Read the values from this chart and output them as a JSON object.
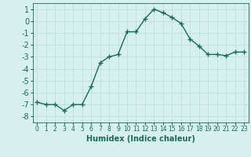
{
  "x": [
    0,
    1,
    2,
    3,
    4,
    5,
    6,
    7,
    8,
    9,
    10,
    11,
    12,
    13,
    14,
    15,
    16,
    17,
    18,
    19,
    20,
    21,
    22,
    23
  ],
  "y": [
    -6.8,
    -7.0,
    -7.0,
    -7.5,
    -7.0,
    -7.0,
    -5.5,
    -3.5,
    -3.0,
    -2.8,
    -0.9,
    -0.9,
    0.2,
    1.0,
    0.7,
    0.3,
    -0.2,
    -1.5,
    -2.1,
    -2.8,
    -2.8,
    -2.9,
    -2.6,
    -2.6
  ],
  "line_color": "#1a6b5a",
  "marker": "+",
  "marker_size": 4,
  "marker_lw": 1.0,
  "bg_color": "#d6f0f0",
  "grid_color": "#c0dede",
  "xlabel": "Humidex (Indice chaleur)",
  "xlabel_fontsize": 7,
  "yticks": [
    -8,
    -7,
    -6,
    -5,
    -4,
    -3,
    -2,
    -1,
    0,
    1
  ],
  "xticks": [
    0,
    1,
    2,
    3,
    4,
    5,
    6,
    7,
    8,
    9,
    10,
    11,
    12,
    13,
    14,
    15,
    16,
    17,
    18,
    19,
    20,
    21,
    22,
    23
  ],
  "ylim": [
    -8.5,
    1.5
  ],
  "xlim": [
    -0.5,
    23.5
  ],
  "ytick_fontsize": 7,
  "xtick_fontsize": 5.5,
  "linewidth": 1.0
}
